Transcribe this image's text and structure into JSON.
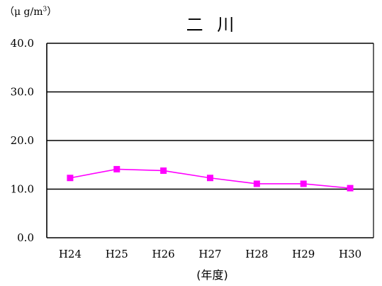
{
  "chart_data": {
    "type": "line",
    "title": "二 川",
    "ylabel": "（μ g/m³）",
    "ylabel_parts": {
      "prefix": "（μ g/m",
      "sup": "3",
      "suffix": "）"
    },
    "xlabel": "(年度)",
    "categories": [
      "H24",
      "H25",
      "H26",
      "H27",
      "H28",
      "H29",
      "H30"
    ],
    "series": [
      {
        "values": [
          12.3,
          14.1,
          13.8,
          12.3,
          11.1,
          11.1,
          10.2
        ],
        "color": "#ff00ff",
        "marker": "square"
      }
    ],
    "yticks": [
      "0.0",
      "10.0",
      "20.0",
      "30.0",
      "40.0"
    ],
    "ylim": [
      0,
      40
    ],
    "grid": true,
    "legend": "none"
  }
}
